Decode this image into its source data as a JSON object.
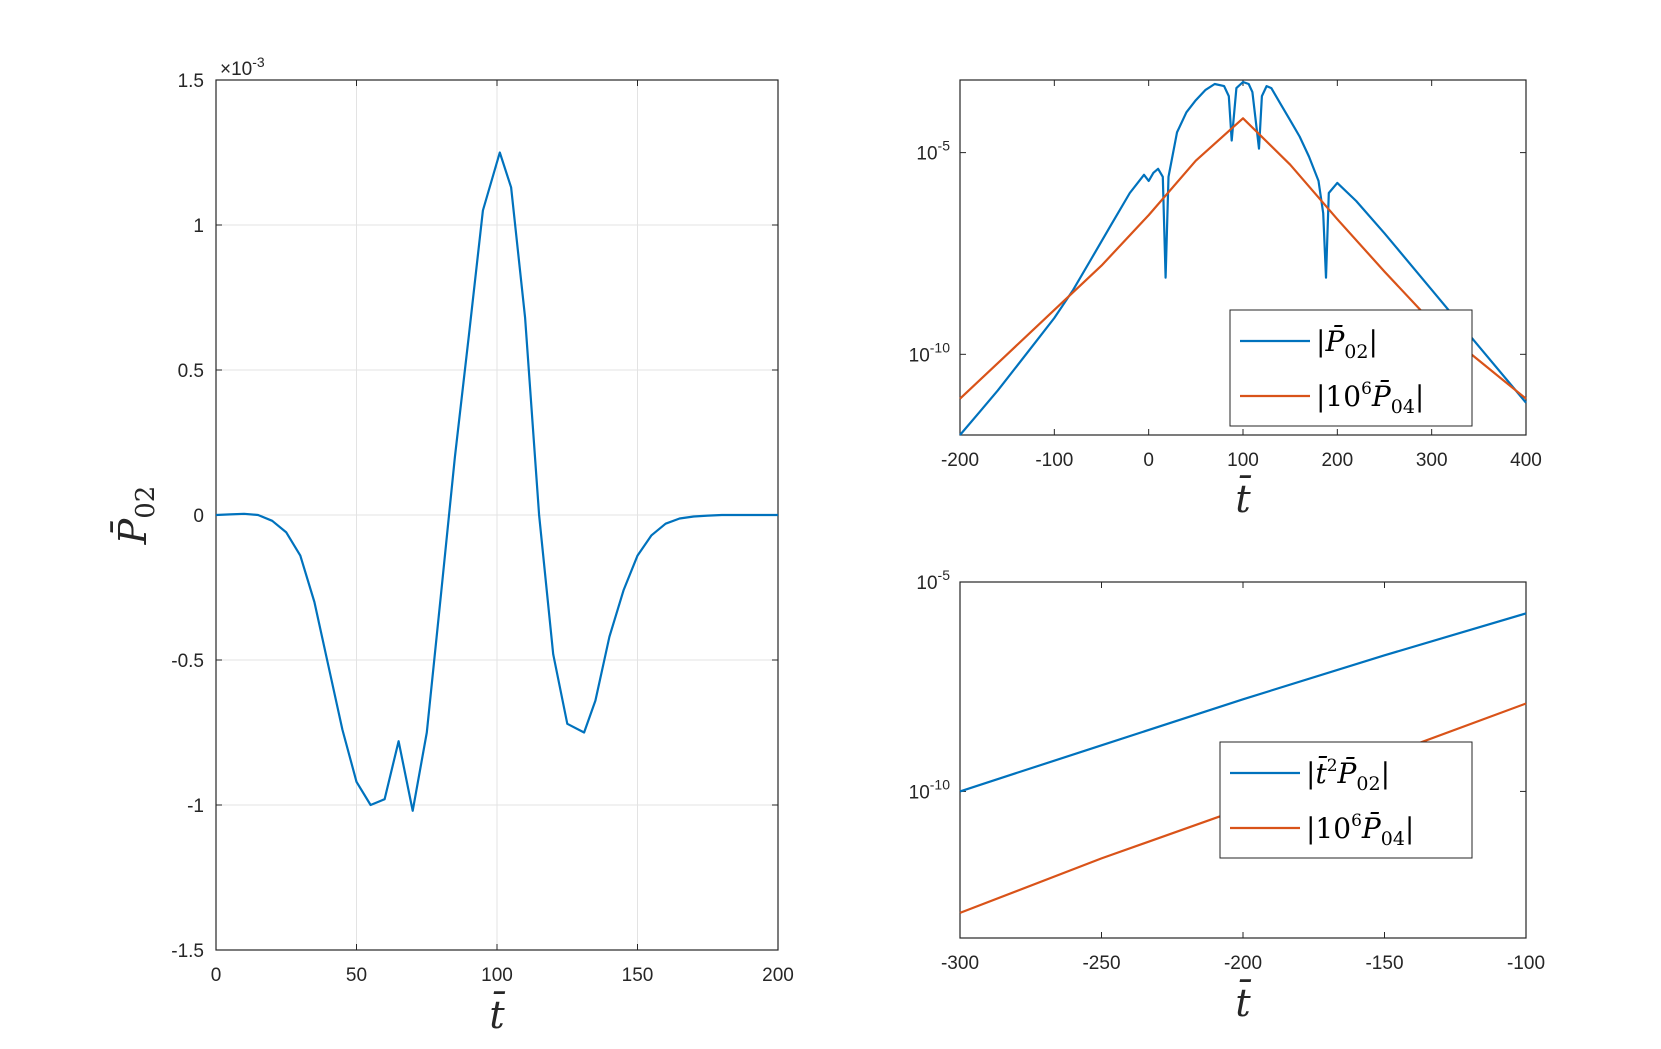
{
  "chart_data": [
    {
      "type": "line",
      "panel": "left",
      "xlabel": "t̄",
      "ylabel": "P̄02",
      "xlim": [
        0,
        200
      ],
      "ylim": [
        -1.5,
        1.5
      ],
      "y_multiplier": "×10-3",
      "y_multiplier_base": "×10",
      "y_multiplier_exp": "-3",
      "grid": true,
      "x_ticks": [
        "0",
        "50",
        "100",
        "150",
        "200"
      ],
      "y_ticks": [
        "-1.5",
        "-1",
        "-0.5",
        "0",
        "0.5",
        "1",
        "1.5"
      ],
      "series": [
        {
          "color": "#0072BD",
          "x": [
            0,
            5,
            10,
            15,
            20,
            25,
            30,
            35,
            40,
            45,
            50,
            55,
            60,
            65,
            70,
            75,
            80,
            85,
            90,
            95,
            101,
            105,
            110,
            115,
            120,
            125,
            131,
            135,
            140,
            145,
            150,
            155,
            160,
            165,
            170,
            175,
            180,
            190,
            200
          ],
          "y": [
            0.0,
            0.002,
            0.004,
            0.0,
            -0.02,
            -0.06,
            -0.14,
            -0.3,
            -0.52,
            -0.74,
            -0.92,
            -1.0,
            -0.98,
            -0.78,
            -1.02,
            -0.75,
            -0.28,
            0.2,
            0.62,
            1.05,
            1.25,
            1.13,
            0.68,
            0.0,
            -0.48,
            -0.72,
            -0.75,
            -0.64,
            -0.42,
            -0.26,
            -0.14,
            -0.07,
            -0.03,
            -0.012,
            -0.005,
            -0.002,
            0.0,
            0.0,
            0.0
          ]
        }
      ]
    },
    {
      "type": "line",
      "panel": "top-right",
      "xlabel": "t̄",
      "ylabel": "",
      "xlim": [
        -200,
        400
      ],
      "ylim": [
        -12,
        -3.2
      ],
      "yscale": "log",
      "grid": false,
      "x_ticks": [
        "-200",
        "-100",
        "0",
        "100",
        "200",
        "300",
        "400"
      ],
      "y_ticks": [
        {
          "value": -5,
          "base": "10",
          "exp": "-5"
        },
        {
          "value": -10,
          "base": "10",
          "exp": "-10"
        }
      ],
      "legend_position": "bottom-right",
      "legend": [
        {
          "prefix": "|",
          "main": "P̄",
          "sup": "",
          "sub": "02",
          "suffix": "|",
          "color": "#0072BD"
        },
        {
          "prefix": "|10",
          "main": "P̄",
          "sup": "6",
          "sub": "04",
          "suffix": "|",
          "color": "#D95319"
        }
      ],
      "series": [
        {
          "color": "#0072BD",
          "x": [
            -200,
            -180,
            -160,
            -140,
            -120,
            -100,
            -80,
            -60,
            -40,
            -20,
            -5,
            0,
            5,
            10,
            15,
            18,
            21,
            30,
            40,
            50,
            60,
            70,
            80,
            85,
            88,
            93,
            100,
            106,
            110,
            117,
            120,
            125,
            130,
            140,
            150,
            160,
            170,
            180,
            185,
            188,
            191,
            200,
            220,
            250,
            300,
            350,
            400
          ],
          "y": [
            -12.0,
            -11.45,
            -10.9,
            -10.3,
            -9.7,
            -9.1,
            -8.4,
            -7.6,
            -6.8,
            -6.0,
            -5.55,
            -5.7,
            -5.5,
            -5.4,
            -5.6,
            -8.1,
            -5.6,
            -4.5,
            -4.0,
            -3.7,
            -3.45,
            -3.3,
            -3.35,
            -3.6,
            -4.7,
            -3.4,
            -3.25,
            -3.3,
            -3.5,
            -4.9,
            -3.6,
            -3.35,
            -3.4,
            -3.8,
            -4.2,
            -4.6,
            -5.1,
            -5.7,
            -6.5,
            -8.1,
            -6.0,
            -5.75,
            -6.2,
            -7.0,
            -8.4,
            -9.8,
            -11.2
          ]
        },
        {
          "color": "#D95319",
          "x": [
            -200,
            -150,
            -100,
            -50,
            0,
            50,
            100,
            150,
            200,
            250,
            300,
            350,
            400
          ],
          "y": [
            -11.1,
            -10.0,
            -8.9,
            -7.8,
            -6.55,
            -5.2,
            -4.15,
            -5.3,
            -6.65,
            -7.95,
            -9.2,
            -10.15,
            -11.1
          ]
        }
      ]
    },
    {
      "type": "line",
      "panel": "bottom-right",
      "xlabel": "t̄",
      "ylabel": "",
      "xlim": [
        -300,
        -100
      ],
      "ylim": [
        -13.5,
        -5
      ],
      "yscale": "log",
      "grid": false,
      "x_ticks": [
        "-300",
        "-250",
        "-200",
        "-150",
        "-100"
      ],
      "y_ticks": [
        {
          "value": -5,
          "base": "10",
          "exp": "-5"
        },
        {
          "value": -10,
          "base": "10",
          "exp": "-10"
        }
      ],
      "legend_position": "bottom-right",
      "legend": [
        {
          "prefix": "|",
          "main": "t̄",
          "sup": "2",
          "main2": "P̄",
          "sub": "02",
          "suffix": "|",
          "color": "#0072BD"
        },
        {
          "prefix": "|10",
          "main": "P̄",
          "sup": "6",
          "sub": "04",
          "suffix": "|",
          "color": "#D95319"
        }
      ],
      "series": [
        {
          "color": "#0072BD",
          "x": [
            -300,
            -250,
            -200,
            -150,
            -100
          ],
          "y": [
            -10.0,
            -8.9,
            -7.8,
            -6.75,
            -5.75
          ]
        },
        {
          "color": "#D95319",
          "x": [
            -300,
            -250,
            -200,
            -150,
            -100
          ],
          "y": [
            -12.9,
            -11.6,
            -10.4,
            -9.15,
            -7.9
          ]
        }
      ]
    }
  ]
}
